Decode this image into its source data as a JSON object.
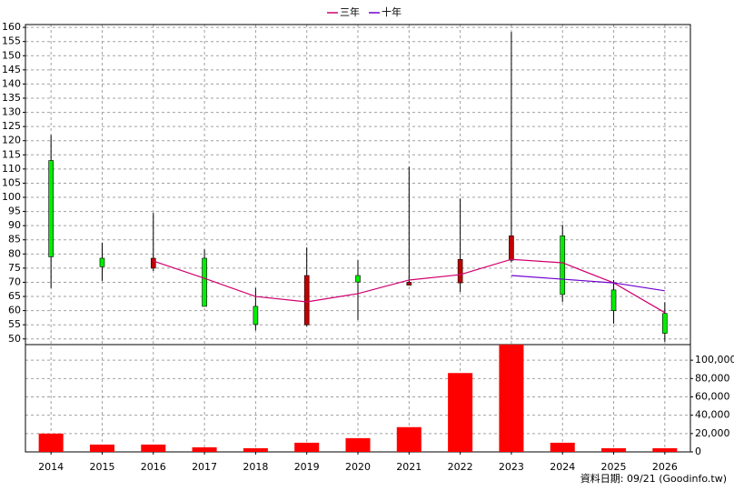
{
  "chart_data": {
    "type": "candlestick",
    "categories": [
      "2014",
      "2015",
      "2016",
      "2017",
      "2018",
      "2019",
      "2020",
      "2021",
      "2022",
      "2023",
      "2024",
      "2025",
      "2026"
    ],
    "open": [
      113,
      78.5,
      75,
      78.5,
      61.5,
      55,
      72.4,
      69,
      69.8,
      77.8,
      86.4,
      67.3,
      59
    ],
    "high": [
      122,
      84,
      94.5,
      81.6,
      68,
      82.3,
      77.8,
      110.8,
      99.6,
      158.4,
      90.3,
      70.8,
      63
    ],
    "low": [
      68,
      70.5,
      74,
      61.5,
      53,
      54.5,
      56.7,
      69,
      66.6,
      77,
      63,
      55.4,
      49
    ],
    "close": [
      79,
      75.5,
      78.5,
      61.5,
      55.1,
      72.4,
      70.1,
      70,
      78.1,
      86.4,
      65.7,
      60,
      52
    ],
    "up_color": "#c00000",
    "down_color": "#00ee00",
    "ylim": [
      48,
      161
    ],
    "yticks": [
      50,
      55,
      60,
      65,
      70,
      75,
      80,
      85,
      90,
      95,
      100,
      105,
      110,
      115,
      120,
      125,
      130,
      135,
      140,
      145,
      150,
      155,
      160
    ],
    "grid": true,
    "legend": "top",
    "series": [
      {
        "name": "三年",
        "color": "#d0006f",
        "values": [
          null,
          null,
          77.5,
          71.4,
          65,
          63.1,
          66,
          70.8,
          72.7,
          78.1,
          76.9,
          69.8,
          59.3
        ]
      },
      {
        "name": "十年",
        "color": "#7000d0",
        "values": [
          null,
          null,
          null,
          null,
          null,
          null,
          null,
          null,
          null,
          72.4,
          71.1,
          69.8,
          67
        ]
      }
    ],
    "volume": {
      "type": "bar",
      "color": "#ff0000",
      "values": [
        20000,
        8000,
        8000,
        5000,
        4000,
        10000,
        15000,
        27000,
        86000,
        117000,
        10000,
        4000,
        4000
      ],
      "ylim": [
        0,
        117000
      ],
      "yticks": [
        0,
        {
          "value": 20000,
          "label": "20,000"
        },
        {
          "value": 40000,
          "label": "40,000"
        },
        {
          "value": 60000,
          "label": "60,000"
        },
        {
          "value": 80000,
          "label": "80,000"
        },
        {
          "value": 100000,
          "label": "100,000"
        }
      ]
    },
    "footnote": "資料日期: 09/21  (Goodinfo.tw)"
  }
}
